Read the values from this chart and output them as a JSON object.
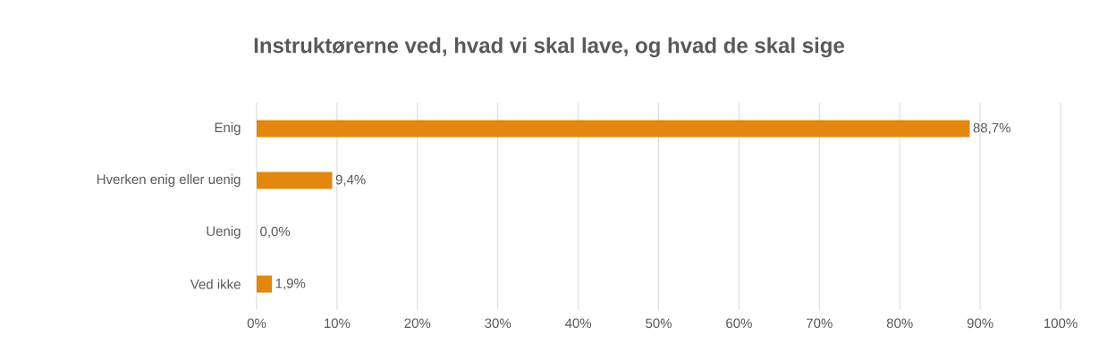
{
  "chart_data": {
    "type": "bar",
    "orientation": "horizontal",
    "title": "Instruktørerne ved, hvad vi skal lave, og hvad de skal sige",
    "categories": [
      "Enig",
      "Hverken enig eller uenig",
      "Uenig",
      "Ved ikke"
    ],
    "values": [
      88.7,
      9.4,
      0.0,
      1.9
    ],
    "value_labels": [
      "88,7%",
      "9,4%",
      "0,0%",
      "1,9%"
    ],
    "color": "#e3870e",
    "xlim": [
      0,
      100
    ],
    "xticks": [
      {
        "value": 0,
        "label": "0%"
      },
      {
        "value": 10,
        "label": "10%"
      },
      {
        "value": 20,
        "label": "20%"
      },
      {
        "value": 30,
        "label": "30%"
      },
      {
        "value": 40,
        "label": "40%"
      },
      {
        "value": 50,
        "label": "50%"
      },
      {
        "value": 60,
        "label": "60%"
      },
      {
        "value": 70,
        "label": "70%"
      },
      {
        "value": 80,
        "label": "80%"
      },
      {
        "value": 90,
        "label": "90%"
      },
      {
        "value": 100,
        "label": "100%"
      }
    ],
    "grid": "x"
  }
}
